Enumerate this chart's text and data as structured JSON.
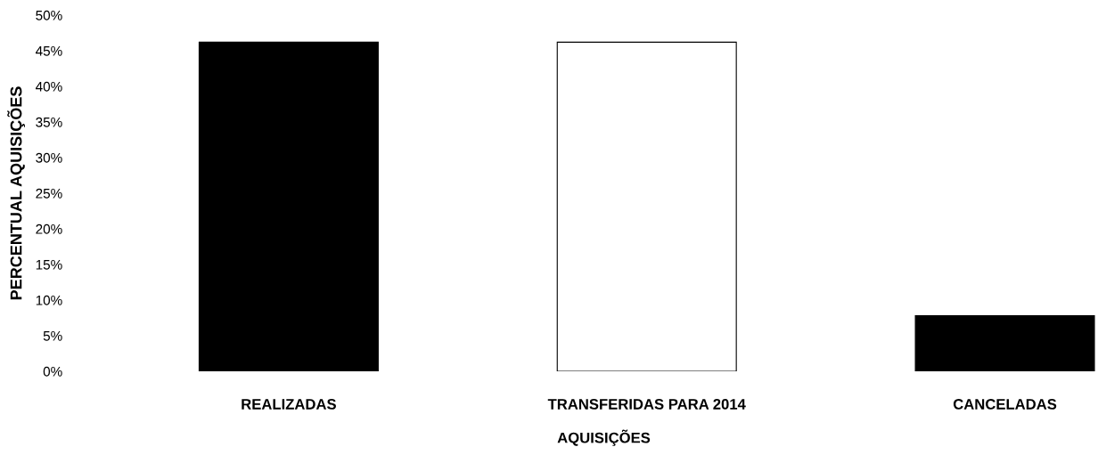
{
  "chart_data": {
    "type": "bar",
    "xlabel": "AQUISIÇÕES",
    "ylabel": "PERCENTUAL AQUISIÇÕES",
    "categories": [
      "REALIZADAS",
      "TRANSFERIDAS PARA 2014",
      "CANCELADAS"
    ],
    "values": [
      46.2,
      46.2,
      7.8
    ],
    "colors": [
      "#000000",
      "#ffffff",
      "#000000"
    ],
    "ylim": [
      0,
      50
    ],
    "yticks": [
      {
        "value": 0,
        "label": "0%"
      },
      {
        "value": 5,
        "label": "5%"
      },
      {
        "value": 10,
        "label": "10%"
      },
      {
        "value": 15,
        "label": "15%"
      },
      {
        "value": 20,
        "label": "20%"
      },
      {
        "value": 25,
        "label": "25%"
      },
      {
        "value": 30,
        "label": "30%"
      },
      {
        "value": 35,
        "label": "35%"
      },
      {
        "value": 40,
        "label": "40%"
      },
      {
        "value": 45,
        "label": "45%"
      },
      {
        "value": 50,
        "label": "50%"
      }
    ],
    "grid": false
  }
}
